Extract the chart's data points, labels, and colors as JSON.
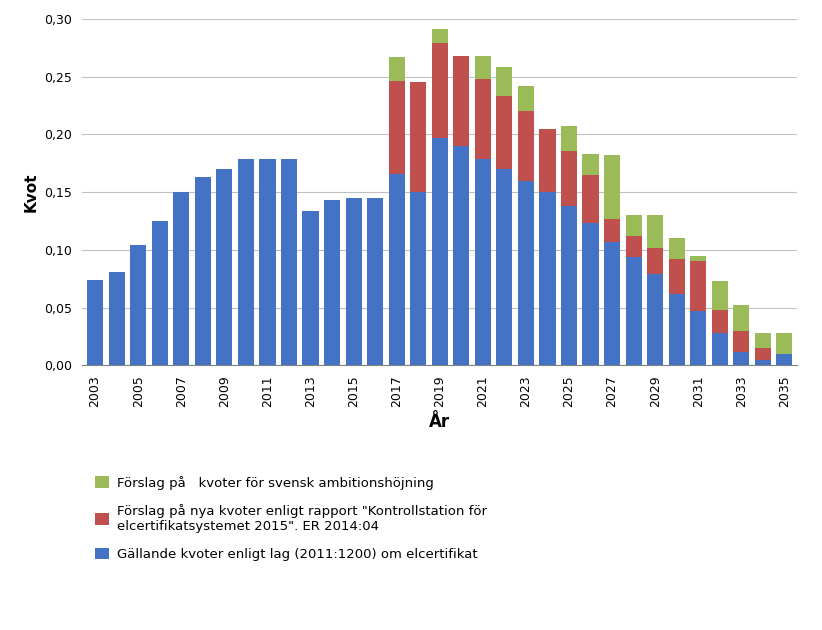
{
  "years": [
    2003,
    2004,
    2005,
    2006,
    2007,
    2008,
    2009,
    2010,
    2011,
    2012,
    2013,
    2014,
    2015,
    2016,
    2017,
    2018,
    2019,
    2020,
    2021,
    2022,
    2023,
    2024,
    2025,
    2026,
    2027,
    2028,
    2029,
    2030,
    2031,
    2032,
    2033,
    2034,
    2035
  ],
  "blue": [
    0.074,
    0.081,
    0.104,
    0.125,
    0.15,
    0.163,
    0.17,
    0.179,
    0.179,
    0.179,
    0.134,
    0.143,
    0.145,
    0.145,
    0.166,
    0.15,
    0.197,
    0.19,
    0.179,
    0.17,
    0.16,
    0.15,
    0.138,
    0.123,
    0.107,
    0.094,
    0.079,
    0.062,
    0.047,
    0.028,
    0.012,
    0.005,
    0.01
  ],
  "red": [
    0.0,
    0.0,
    0.0,
    0.0,
    0.0,
    0.0,
    0.0,
    0.0,
    0.0,
    0.0,
    0.0,
    0.0,
    0.0,
    0.0,
    0.08,
    0.095,
    0.082,
    0.078,
    0.069,
    0.063,
    0.06,
    0.055,
    0.048,
    0.042,
    0.02,
    0.018,
    0.023,
    0.03,
    0.043,
    0.02,
    0.018,
    0.01,
    0.0
  ],
  "green": [
    0.0,
    0.0,
    0.0,
    0.0,
    0.0,
    0.0,
    0.0,
    0.0,
    0.0,
    0.0,
    0.0,
    0.0,
    0.0,
    0.0,
    0.021,
    0.0,
    0.012,
    0.0,
    0.02,
    0.025,
    0.022,
    0.0,
    0.021,
    0.018,
    0.055,
    0.018,
    0.028,
    0.018,
    0.005,
    0.025,
    0.022,
    0.013,
    0.018
  ],
  "blue_color": "#4472C4",
  "red_color": "#C0504D",
  "green_color": "#9BBB59",
  "ylabel": "Kvot",
  "xlabel": "År",
  "ylim": [
    0.0,
    0.3
  ],
  "yticks": [
    0.0,
    0.05,
    0.1,
    0.15,
    0.2,
    0.25,
    0.3
  ],
  "ytick_labels": [
    "0,00",
    "0,05",
    "0,10",
    "0,15",
    "0,20",
    "0,25",
    "0,30"
  ],
  "legend_green": "Förslag på   kvoter för svensk ambitionshöjning",
  "legend_red": "Förslag på nya kvoter enligt rapport \"Kontrollstation för\nelcertifikatsystemet 2015\". ER 2014:04",
  "legend_blue": "Gällande kvoter enligt lag (2011:1200) om elcertifikat",
  "bg_color": "#FFFFFF",
  "grid_color": "#C0C0C0"
}
